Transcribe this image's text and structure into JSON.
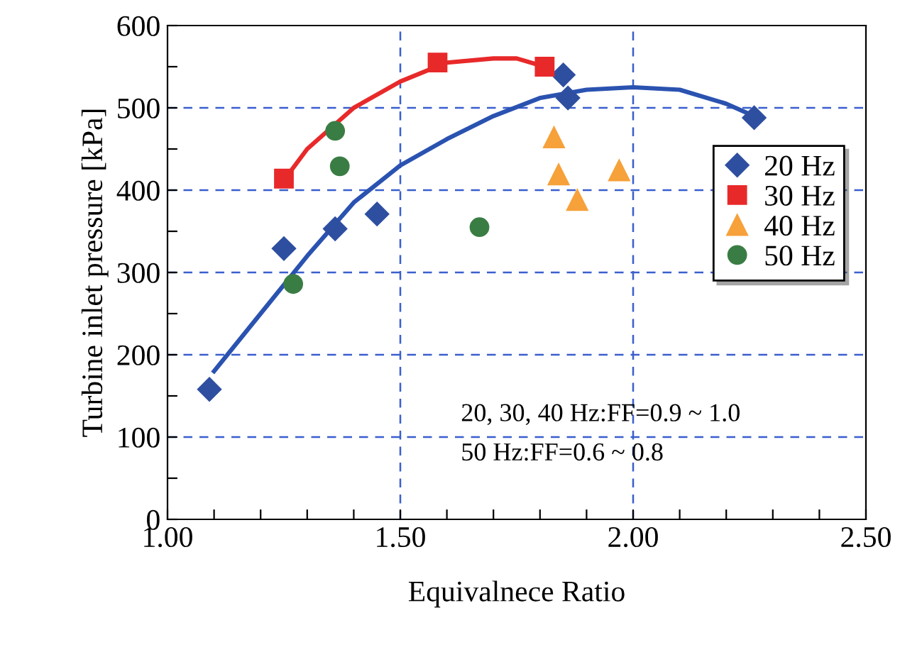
{
  "chart_data": {
    "type": "scatter",
    "xlabel": "Equivalnece Ratio",
    "ylabel": "Turbine inlet pressure [kPa]",
    "xlim": [
      1.0,
      2.5
    ],
    "ylim": [
      0,
      600
    ],
    "xticks": [
      {
        "value": 1.0,
        "label": "1.00"
      },
      {
        "value": 1.1,
        "label": null
      },
      {
        "value": 1.2,
        "label": null
      },
      {
        "value": 1.3,
        "label": null
      },
      {
        "value": 1.4,
        "label": null
      },
      {
        "value": 1.5,
        "label": "1.50"
      },
      {
        "value": 1.6,
        "label": null
      },
      {
        "value": 1.7,
        "label": null
      },
      {
        "value": 1.8,
        "label": null
      },
      {
        "value": 1.9,
        "label": null
      },
      {
        "value": 2.0,
        "label": "2.00"
      },
      {
        "value": 2.1,
        "label": null
      },
      {
        "value": 2.2,
        "label": null
      },
      {
        "value": 2.3,
        "label": null
      },
      {
        "value": 2.4,
        "label": null
      },
      {
        "value": 2.5,
        "label": "2.50"
      }
    ],
    "yticks": [
      0,
      {
        "value": 50,
        "label": null
      },
      100,
      {
        "value": 150,
        "label": null
      },
      200,
      {
        "value": 250,
        "label": null
      },
      300,
      {
        "value": 350,
        "label": null
      },
      400,
      {
        "value": 450,
        "label": null
      },
      500,
      {
        "value": 550,
        "label": null
      },
      600
    ],
    "grid": true,
    "legend": "right",
    "series": [
      {
        "type": "line",
        "color": "#e8292a",
        "marker": "none",
        "x": [
          1.25,
          1.3,
          1.4,
          1.5,
          1.6,
          1.7,
          1.75,
          1.81
        ],
        "values": [
          412,
          450,
          500,
          532,
          555,
          560,
          560,
          550
        ]
      },
      {
        "type": "line",
        "color": "#2a52b0",
        "marker": "none",
        "x": [
          1.1,
          1.2,
          1.3,
          1.4,
          1.5,
          1.6,
          1.7,
          1.8,
          1.9,
          2.0,
          2.1,
          2.2,
          2.26
        ],
        "values": [
          180,
          250,
          320,
          385,
          430,
          462,
          490,
          512,
          522,
          525,
          522,
          505,
          490
        ]
      },
      {
        "name": "20 Hz",
        "color": "#2e4fa0",
        "marker": "diamond",
        "x": [
          1.09,
          1.25,
          1.36,
          1.45,
          1.85,
          1.86,
          2.26
        ],
        "values": [
          158,
          329,
          353,
          371,
          540,
          512,
          488
        ]
      },
      {
        "name": "30 Hz",
        "color": "#e8292a",
        "marker": "square",
        "x": [
          1.25,
          1.58,
          1.81
        ],
        "values": [
          414,
          555,
          550
        ]
      },
      {
        "name": "40 Hz",
        "color": "#f6a13a",
        "marker": "triangle",
        "x": [
          1.83,
          1.84,
          1.88,
          1.97
        ],
        "values": [
          464,
          419,
          388,
          424
        ]
      },
      {
        "name": "50 Hz",
        "color": "#3a7d44",
        "marker": "circle",
        "x": [
          1.27,
          1.36,
          1.37,
          1.67
        ],
        "values": [
          286,
          472,
          429,
          355
        ]
      }
    ],
    "annotations": [
      "20, 30, 40 Hz:FF=0.9 ~ 1.0\n50 Hz:FF=0.6 ~ 0.8"
    ]
  }
}
